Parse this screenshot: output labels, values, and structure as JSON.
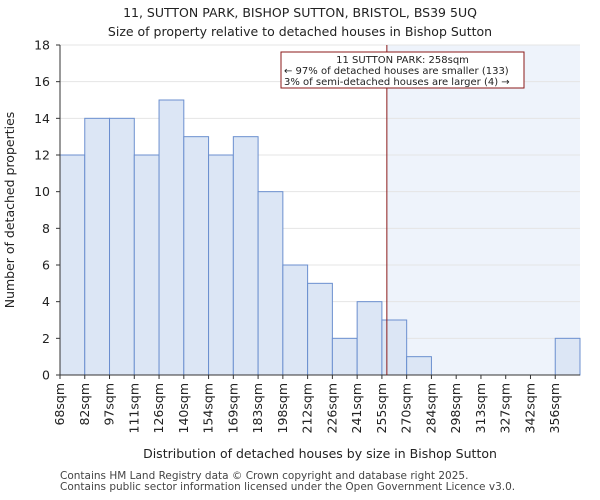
{
  "header": {
    "title": "11, SUTTON PARK, BISHOP SUTTON, BRISTOL, BS39 5UQ",
    "subtitle": "Size of property relative to detached houses in Bishop Sutton"
  },
  "footer": {
    "line1": "Contains HM Land Registry data © Crown copyright and database right 2025.",
    "line2": "Contains public sector information licensed under the Open Government Licence v3.0."
  },
  "colors": {
    "bar_fill": "#dce6f5",
    "bar_stroke": "#6b8fcf",
    "highlight_bg": "#eef3fb",
    "marker_line": "#8b1a1a",
    "annotation_border": "#8b1a1a",
    "grid": "#e4e4e4"
  },
  "chart_data": {
    "type": "bar",
    "xlabel": "Distribution of detached houses by size in Bishop Sutton",
    "ylabel": "Number of detached properties",
    "categories": [
      "68sqm",
      "82sqm",
      "97sqm",
      "111sqm",
      "126sqm",
      "140sqm",
      "154sqm",
      "169sqm",
      "183sqm",
      "198sqm",
      "212sqm",
      "226sqm",
      "241sqm",
      "255sqm",
      "270sqm",
      "284sqm",
      "298sqm",
      "313sqm",
      "327sqm",
      "342sqm",
      "356sqm"
    ],
    "values": [
      12,
      14,
      14,
      12,
      15,
      13,
      12,
      13,
      10,
      6,
      5,
      2,
      4,
      3,
      1,
      0,
      0,
      0,
      0,
      0,
      2
    ],
    "ylim": [
      0,
      18
    ],
    "yticks": [
      0,
      2,
      4,
      6,
      8,
      10,
      12,
      14,
      16,
      18
    ],
    "grid": true,
    "marker": {
      "value_sqm": 258,
      "bin_start": 255,
      "bin_end": 270,
      "label": "11 SUTTON PARK: 258sqm",
      "line2": "← 97% of detached houses are smaller (133)",
      "line3": "3% of semi-detached houses are larger (4) →"
    }
  }
}
